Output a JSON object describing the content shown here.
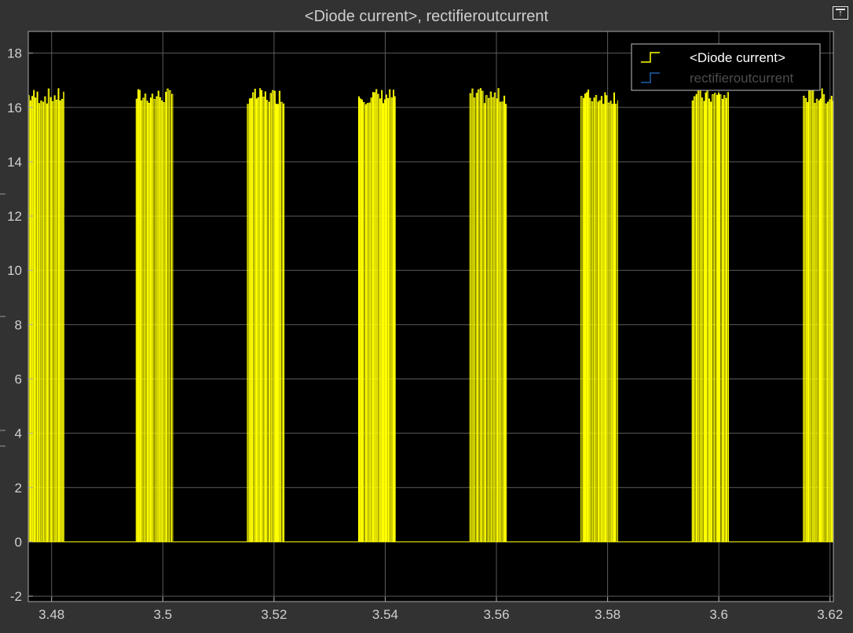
{
  "window": {
    "title": "<Diode current>, rectifieroutcurrent"
  },
  "colors": {
    "background": "#000000",
    "frame": "#323232",
    "grid": "#5c5c5c",
    "axis": "#a8a8a8",
    "tick_text": "#d0d0d0",
    "diode_current": "#ffff00",
    "rectifieroutcurrent": "#1f5fa8"
  },
  "chart_data": {
    "type": "line",
    "title": "<Diode current>, rectifieroutcurrent",
    "xlabel": "",
    "ylabel": "",
    "xlim": [
      3.4758,
      3.6206
    ],
    "ylim": [
      -2.2,
      18.8
    ],
    "xticks": [
      3.48,
      3.5,
      3.52,
      3.54,
      3.56,
      3.58,
      3.6,
      3.62
    ],
    "xtick_labels": [
      "3.48",
      "3.5",
      "3.52",
      "3.54",
      "3.56",
      "3.58",
      "3.6",
      "3.62"
    ],
    "yticks": [
      -2,
      0,
      2,
      4,
      6,
      8,
      10,
      12,
      14,
      16,
      18
    ],
    "ytick_labels": [
      "-2",
      "0",
      "2",
      "4",
      "6",
      "8",
      "10",
      "12",
      "14",
      "16",
      "18"
    ],
    "grid": true,
    "legend": {
      "position": "top-right",
      "entries": [
        "<Diode current>",
        "rectifieroutcurrent"
      ]
    },
    "series": [
      {
        "name": "<Diode current>",
        "style": "step",
        "burst_intervals": [
          [
            3.4758,
            3.4822
          ],
          [
            3.4952,
            3.5018
          ],
          [
            3.5152,
            3.5218
          ],
          [
            3.5352,
            3.5418
          ],
          [
            3.5552,
            3.5618
          ],
          [
            3.5752,
            3.5818
          ],
          [
            3.5952,
            3.6018
          ],
          [
            3.6152,
            3.6206
          ]
        ],
        "burst_peak_range": [
          16.1,
          16.7
        ],
        "baseline": 0
      },
      {
        "name": "rectifieroutcurrent",
        "style": "step",
        "values": []
      }
    ]
  }
}
